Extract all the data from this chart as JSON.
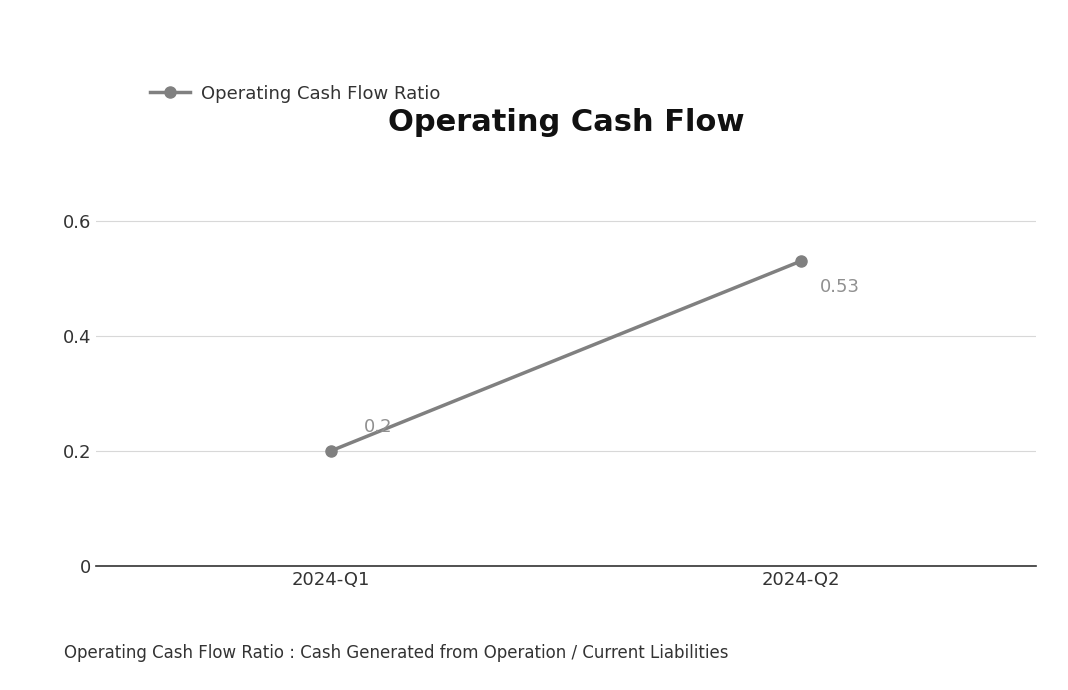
{
  "title": "Operating Cash Flow",
  "title_fontsize": 22,
  "title_fontweight": "bold",
  "categories": [
    "2024-Q1",
    "2024-Q2"
  ],
  "values": [
    0.2,
    0.53
  ],
  "line_color": "#808080",
  "marker_color": "#808080",
  "marker_style": "o",
  "marker_size": 8,
  "line_width": 2.5,
  "legend_label": "Operating Cash Flow Ratio",
  "annotation_labels": [
    "0.2",
    "0.53"
  ],
  "annotation_color": "#909090",
  "annotation_fontsize": 13,
  "ylim": [
    0,
    0.72
  ],
  "yticks": [
    0,
    0.2,
    0.4,
    0.6
  ],
  "grid_color": "#d8d8d8",
  "grid_linewidth": 0.8,
  "background_color": "#ffffff",
  "footnote": "Operating Cash Flow Ratio : Cash Generated from Operation / Current Liabilities",
  "footnote_fontsize": 12,
  "footnote_color": "#333333",
  "legend_fontsize": 13,
  "tick_fontsize": 13,
  "tick_color": "#333333"
}
